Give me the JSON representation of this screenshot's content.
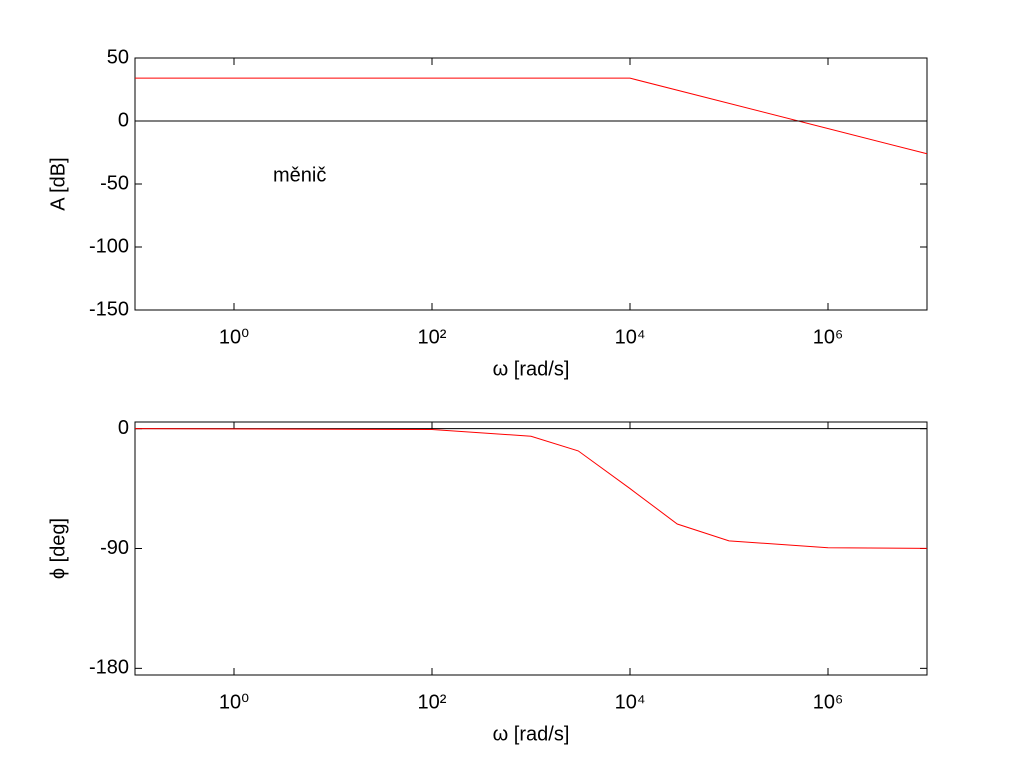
{
  "chart_data": [
    {
      "type": "line",
      "xscale": "log",
      "ylabel": "A [dB]",
      "xlabel": "ω [rad/s]",
      "annotation": "měnič",
      "xlim": [
        0.1,
        10000000
      ],
      "ylim": [
        -150,
        50
      ],
      "xticks": [
        {
          "value": 1,
          "label": "10⁰"
        },
        {
          "value": 100,
          "label": "10²"
        },
        {
          "value": 10000,
          "label": "10⁴"
        },
        {
          "value": 1000000,
          "label": "10⁶"
        }
      ],
      "yticks": [
        -150,
        -100,
        -50,
        0,
        50
      ],
      "x": [
        0.1,
        10000,
        10000000
      ],
      "series": [
        {
          "color": "#ff0000",
          "values": [
            34,
            34,
            -26
          ]
        },
        {
          "color": "#000000",
          "values": [
            0,
            0,
            0
          ]
        }
      ]
    },
    {
      "type": "line",
      "xscale": "log",
      "ylabel": "ϕ [deg]",
      "xlabel": "ω [rad/s]",
      "xlim": [
        0.1,
        10000000
      ],
      "ylim": [
        -185,
        5
      ],
      "xticks": [
        {
          "value": 1,
          "label": "10⁰"
        },
        {
          "value": 100,
          "label": "10²"
        },
        {
          "value": 10000,
          "label": "10⁴"
        },
        {
          "value": 1000000,
          "label": "10⁶"
        }
      ],
      "yticks": [
        -180,
        -90,
        0
      ],
      "x": [
        0.1,
        100,
        1000,
        3000,
        10000,
        30000,
        100000,
        1000000,
        10000000
      ],
      "series": [
        {
          "color": "#000000",
          "values": [
            0,
            0,
            0,
            0,
            0,
            0,
            0,
            0,
            0
          ]
        },
        {
          "color": "#ff0000",
          "values": [
            0,
            -0.6,
            -5.7,
            -16.7,
            -45,
            -71.6,
            -84.3,
            -89.4,
            -89.9
          ]
        }
      ]
    }
  ]
}
